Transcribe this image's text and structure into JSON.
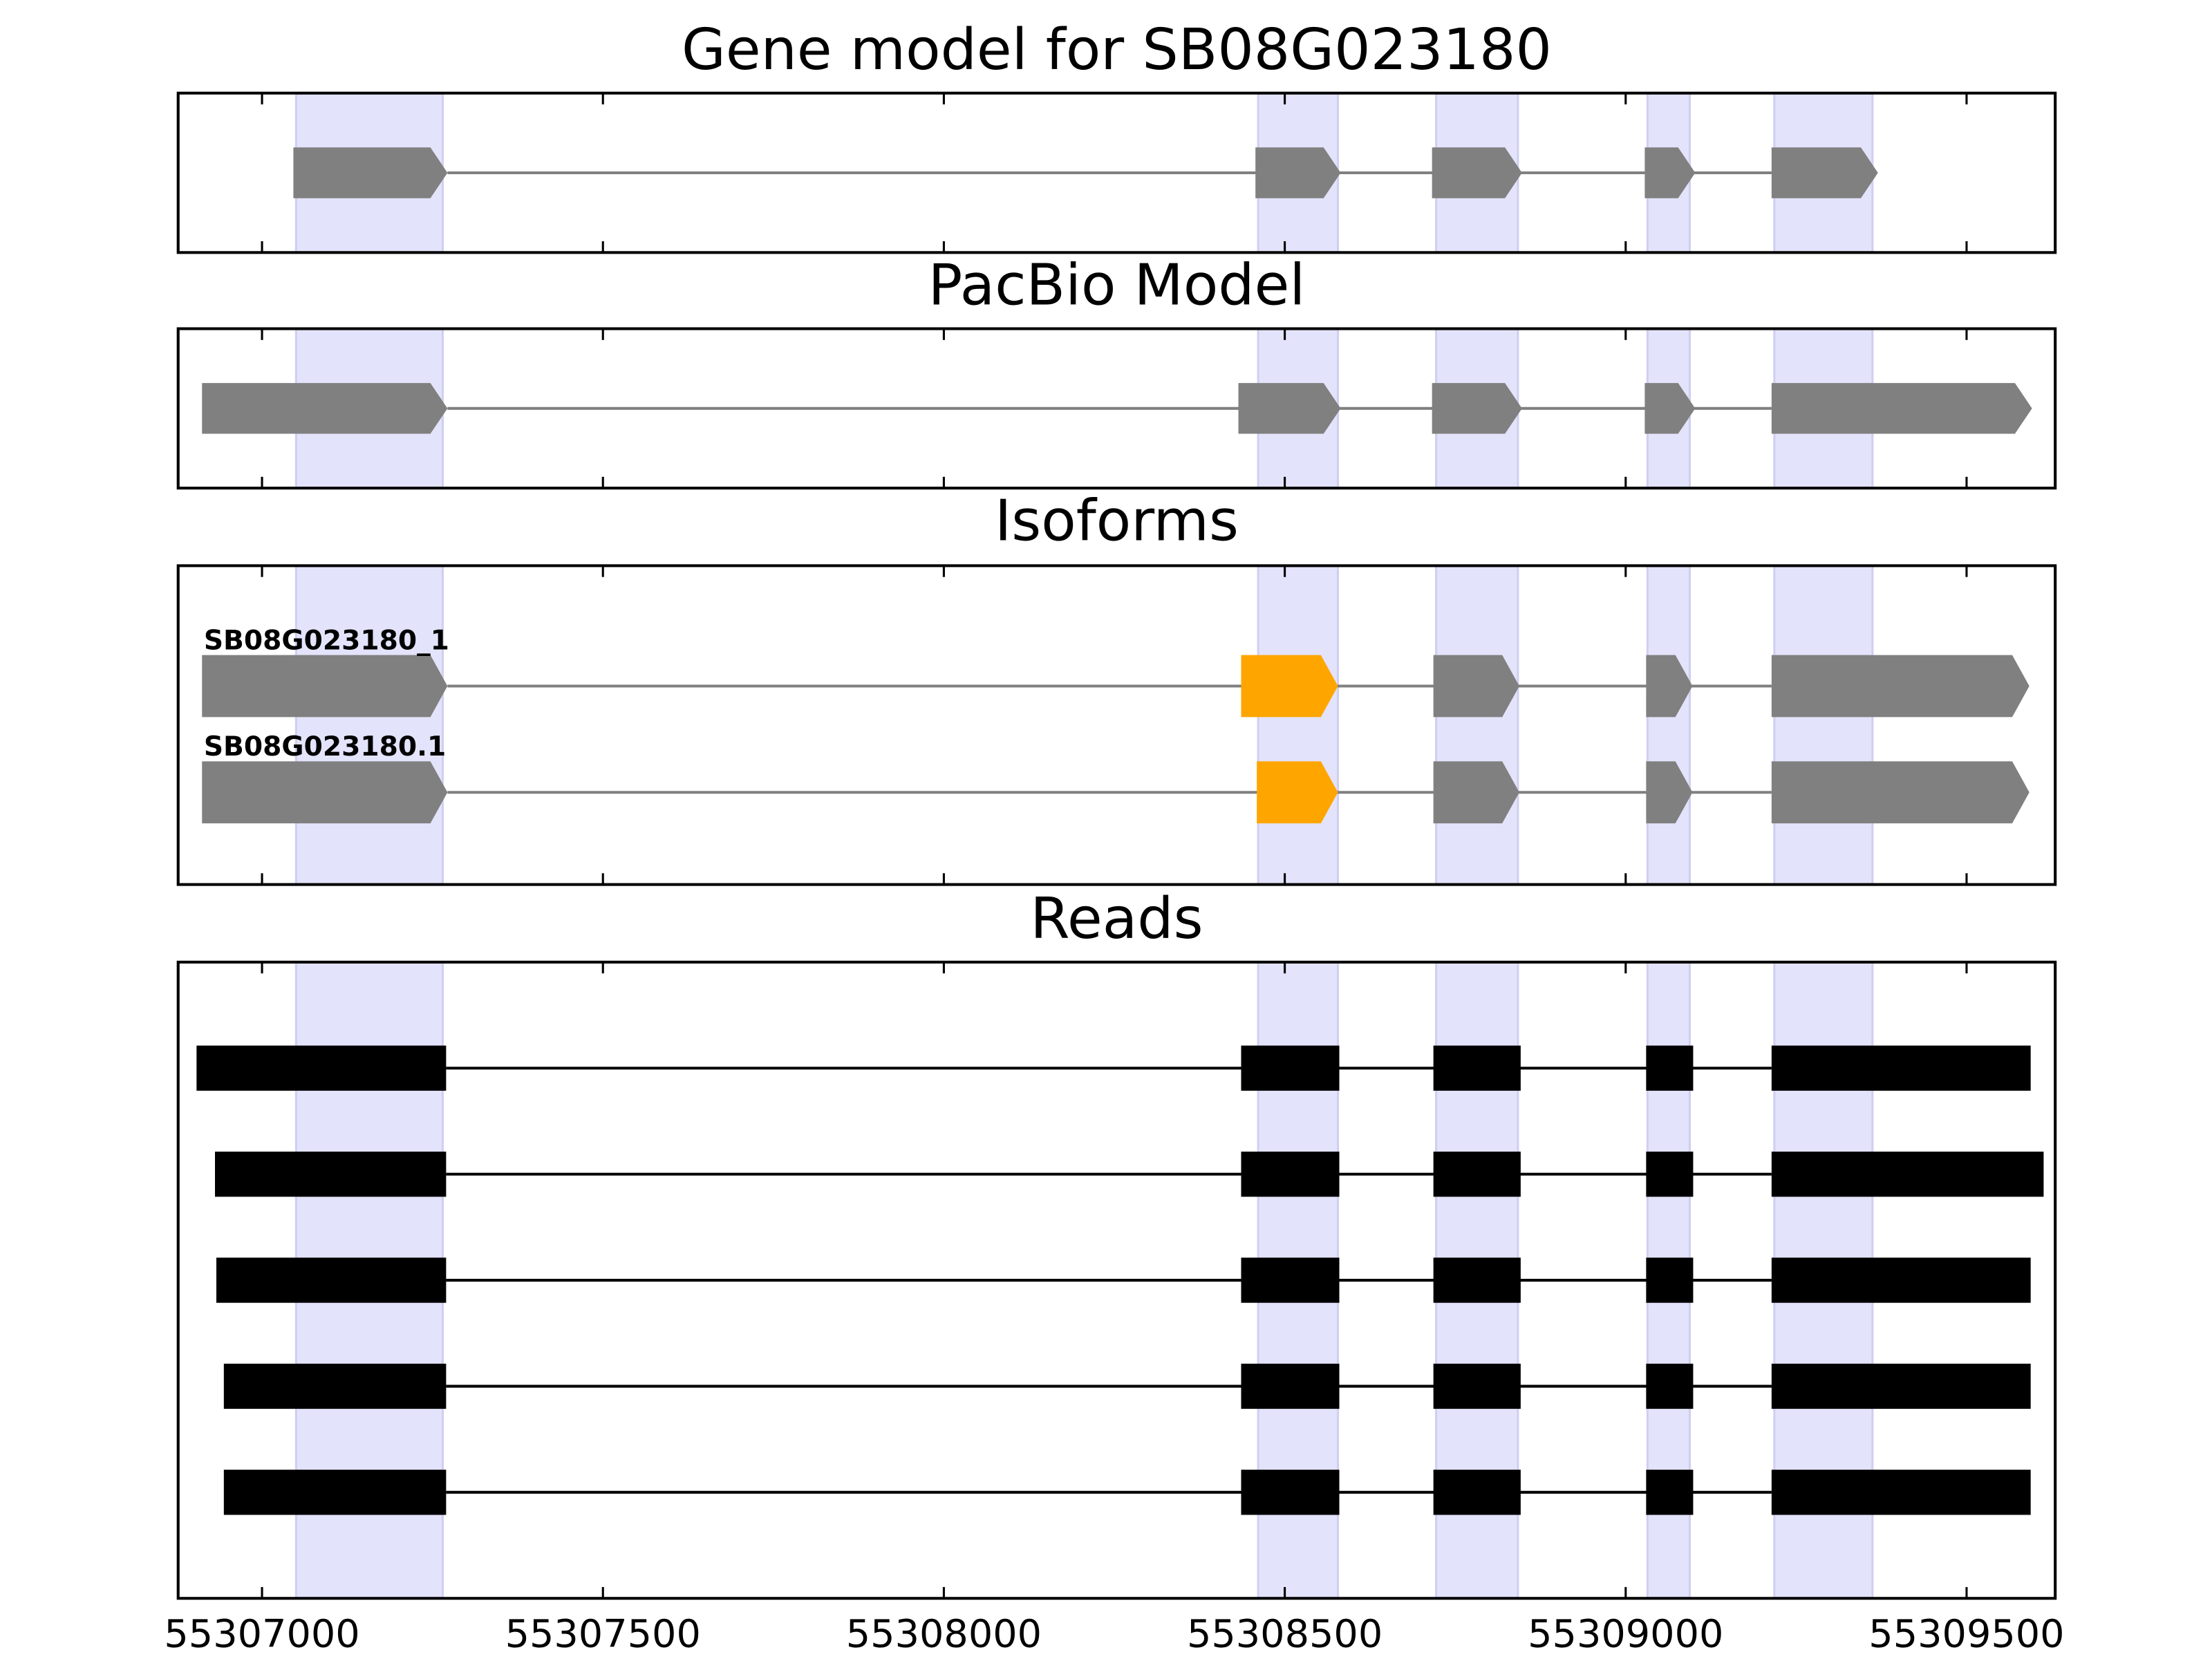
{
  "chart_data": [
    {
      "type": "track",
      "title": "Gene model for SB08G023180",
      "shape": "arrow",
      "xlim": [
        55306877,
        55309630
      ],
      "xticks": [
        55307000,
        55307500,
        55308000,
        55308500,
        55309000,
        55309500
      ],
      "highlights": [
        [
          55307050,
          55307265
        ],
        [
          55308461,
          55308578
        ],
        [
          55308722,
          55308842
        ],
        [
          55309032,
          55309094
        ],
        [
          55309218,
          55309362
        ]
      ],
      "features": [
        {
          "exons": [
            [
              55307046,
              55307272
            ],
            [
              55308457,
              55308582
            ],
            [
              55308716,
              55308848
            ],
            [
              55309028,
              55309102
            ],
            [
              55309214,
              55309370
            ]
          ],
          "colors": [
            "#808080",
            "#808080",
            "#808080",
            "#808080",
            "#808080"
          ]
        }
      ]
    },
    {
      "type": "track",
      "title": "PacBio Model",
      "shape": "arrow",
      "xlim": [
        55306877,
        55309630
      ],
      "xticks": [
        55307000,
        55307500,
        55308000,
        55308500,
        55309000,
        55309500
      ],
      "highlights": [
        [
          55307050,
          55307265
        ],
        [
          55308461,
          55308578
        ],
        [
          55308722,
          55308842
        ],
        [
          55309032,
          55309094
        ],
        [
          55309218,
          55309362
        ]
      ],
      "features": [
        {
          "exons": [
            [
              55306912,
              55307272
            ],
            [
              55308432,
              55308582
            ],
            [
              55308716,
              55308848
            ],
            [
              55309028,
              55309102
            ],
            [
              55309214,
              55309596
            ]
          ],
          "colors": [
            "#808080",
            "#808080",
            "#808080",
            "#808080",
            "#808080"
          ]
        }
      ]
    },
    {
      "type": "track",
      "title": "Isoforms",
      "shape": "arrow",
      "xlim": [
        55306877,
        55309630
      ],
      "xticks": [
        55307000,
        55307500,
        55308000,
        55308500,
        55309000,
        55309500
      ],
      "highlights": [
        [
          55307050,
          55307265
        ],
        [
          55308461,
          55308578
        ],
        [
          55308722,
          55308842
        ],
        [
          55309032,
          55309094
        ],
        [
          55309218,
          55309362
        ]
      ],
      "features": [
        {
          "name": "SB08G023180_1",
          "exons": [
            [
              55306912,
              55307272
            ],
            [
              55308436,
              55308578
            ],
            [
              55308718,
              55308844
            ],
            [
              55309030,
              55309098
            ],
            [
              55309214,
              55309592
            ]
          ],
          "colors": [
            "#808080",
            "#ffa500",
            "#808080",
            "#808080",
            "#808080"
          ]
        },
        {
          "name": "SB08G023180.1",
          "exons": [
            [
              55306912,
              55307272
            ],
            [
              55308459,
              55308578
            ],
            [
              55308718,
              55308844
            ],
            [
              55309030,
              55309098
            ],
            [
              55309214,
              55309592
            ]
          ],
          "colors": [
            "#808080",
            "#ffa500",
            "#808080",
            "#808080",
            "#808080"
          ]
        }
      ]
    },
    {
      "type": "track",
      "title": "Reads",
      "shape": "block",
      "xlim": [
        55306877,
        55309630
      ],
      "xticks": [
        55307000,
        55307500,
        55308000,
        55308500,
        55309000,
        55309500
      ],
      "highlights": [
        [
          55307050,
          55307265
        ],
        [
          55308461,
          55308578
        ],
        [
          55308722,
          55308842
        ],
        [
          55309032,
          55309094
        ],
        [
          55309218,
          55309362
        ]
      ],
      "features": [
        {
          "exons": [
            [
              55306904,
              55307270
            ],
            [
              55308436,
              55308580
            ],
            [
              55308718,
              55308846
            ],
            [
              55309030,
              55309099
            ],
            [
              55309214,
              55309594
            ]
          ],
          "colors": [
            "#000000",
            "#000000",
            "#000000",
            "#000000",
            "#000000"
          ]
        },
        {
          "exons": [
            [
              55306931,
              55307270
            ],
            [
              55308436,
              55308580
            ],
            [
              55308718,
              55308846
            ],
            [
              55309030,
              55309099
            ],
            [
              55309214,
              55309613
            ]
          ],
          "colors": [
            "#000000",
            "#000000",
            "#000000",
            "#000000",
            "#000000"
          ]
        },
        {
          "exons": [
            [
              55306933,
              55307270
            ],
            [
              55308436,
              55308580
            ],
            [
              55308718,
              55308846
            ],
            [
              55309030,
              55309099
            ],
            [
              55309214,
              55309594
            ]
          ],
          "colors": [
            "#000000",
            "#000000",
            "#000000",
            "#000000",
            "#000000"
          ]
        },
        {
          "exons": [
            [
              55306944,
              55307270
            ],
            [
              55308436,
              55308580
            ],
            [
              55308718,
              55308846
            ],
            [
              55309030,
              55309099
            ],
            [
              55309214,
              55309594
            ]
          ],
          "colors": [
            "#000000",
            "#000000",
            "#000000",
            "#000000",
            "#000000"
          ]
        },
        {
          "exons": [
            [
              55306944,
              55307270
            ],
            [
              55308436,
              55308580
            ],
            [
              55308718,
              55308846
            ],
            [
              55309030,
              55309099
            ],
            [
              55309214,
              55309594
            ]
          ],
          "colors": [
            "#000000",
            "#000000",
            "#000000",
            "#000000",
            "#000000"
          ]
        }
      ]
    }
  ]
}
